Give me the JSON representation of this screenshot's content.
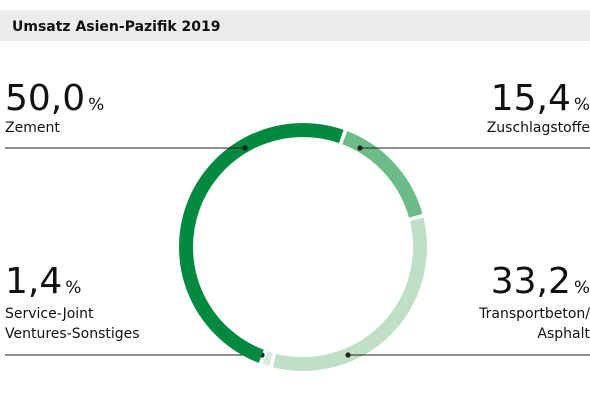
{
  "chart_data": {
    "type": "donut",
    "title": "Umsatz Asien-Pazifik 2019",
    "unit": "%",
    "categories": [
      [
        "Zuschlagstoffe"
      ],
      [
        "Transportbeton/",
        "Asphalt"
      ],
      [
        "Service-Joint",
        "Ventures-Sonstiges"
      ],
      [
        "Zement"
      ]
    ],
    "values": [
      15.4,
      33.2,
      1.4,
      50.0
    ],
    "value_labels": [
      "15,4",
      "33,2",
      "1,4",
      "50,0"
    ],
    "colors": [
      "#6dbb87",
      "#bfe0c6",
      "#d9ecdd",
      "#00893f"
    ]
  }
}
